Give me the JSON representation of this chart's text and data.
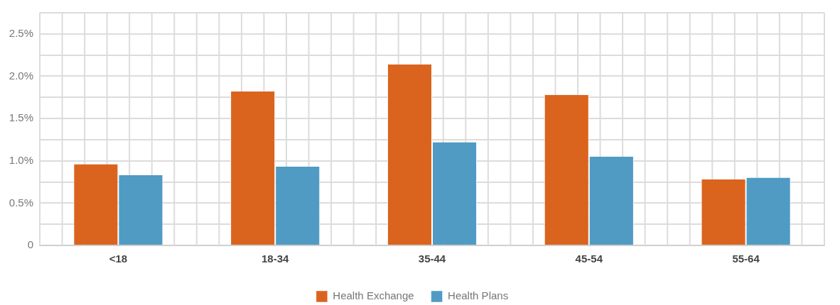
{
  "chart_data": {
    "type": "bar",
    "categories": [
      "<18",
      "18-34",
      "35-44",
      "45-54",
      "55-64"
    ],
    "series": [
      {
        "name": "Health Exchange",
        "color": "#da641e",
        "values": [
          0.96,
          1.82,
          2.14,
          1.78,
          0.78
        ]
      },
      {
        "name": "Health Plans",
        "color": "#4f9bc3",
        "values": [
          0.83,
          0.93,
          1.22,
          1.05,
          0.8
        ]
      }
    ],
    "ylim": [
      0,
      2.75
    ],
    "yticks": [
      0,
      {
        "value": 0.25,
        "label": null
      },
      {
        "value": 0.5,
        "label": "0.5%"
      },
      {
        "value": 0.75,
        "label": null
      },
      {
        "value": 1,
        "label": "1.0%"
      },
      {
        "value": 1.25,
        "label": null
      },
      {
        "value": 1.5,
        "label": "1.5%"
      },
      {
        "value": 1.75,
        "label": null
      },
      {
        "value": 2,
        "label": "2.0%"
      },
      {
        "value": 2.25,
        "label": null
      },
      {
        "value": 2.5,
        "label": "2.5%"
      },
      {
        "value": 2.75,
        "label": null
      }
    ],
    "grid": true,
    "legend": "bottom"
  }
}
